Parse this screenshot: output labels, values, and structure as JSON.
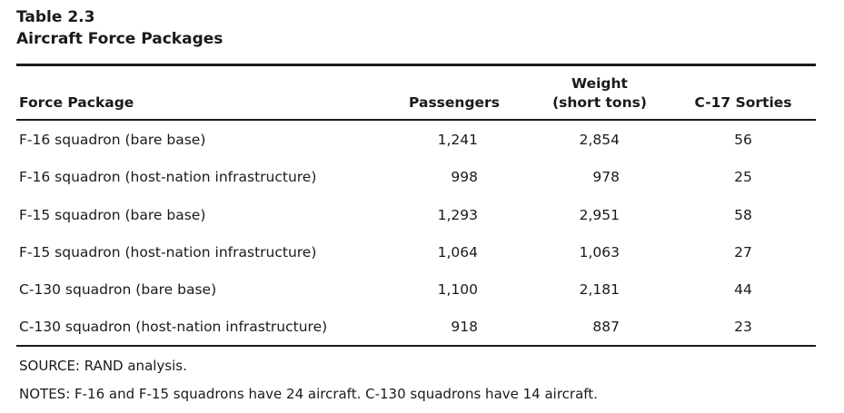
{
  "table": {
    "number": "Table 2.3",
    "title": "Aircraft Force Packages",
    "headers": {
      "force_package": "Force Package",
      "passengers": "Passengers",
      "weight_line1": "Weight",
      "weight_line2": "(short tons)",
      "sorties": "C-17 Sorties"
    },
    "rows": [
      {
        "force_package": "F-16 squadron (bare base)",
        "passengers": "1,241",
        "weight": "2,854",
        "sorties": "56"
      },
      {
        "force_package": "F-16 squadron (host-nation infrastructure)",
        "passengers": "998",
        "weight": "978",
        "sorties": "25"
      },
      {
        "force_package": "F-15 squadron (bare base)",
        "passengers": "1,293",
        "weight": "2,951",
        "sorties": "58"
      },
      {
        "force_package": "F-15 squadron (host-nation infrastructure)",
        "passengers": "1,064",
        "weight": "1,063",
        "sorties": "27"
      },
      {
        "force_package": "C-130 squadron (bare base)",
        "passengers": "1,100",
        "weight": "2,181",
        "sorties": "44"
      },
      {
        "force_package": "C-130 squadron (host-nation infrastructure)",
        "passengers": "918",
        "weight": "887",
        "sorties": "23"
      }
    ],
    "source": "SOURCE: RAND analysis.",
    "notes": "NOTES: F-16 and F-15 squadrons have 24 aircraft. C-130 squadrons have 14 aircraft."
  }
}
